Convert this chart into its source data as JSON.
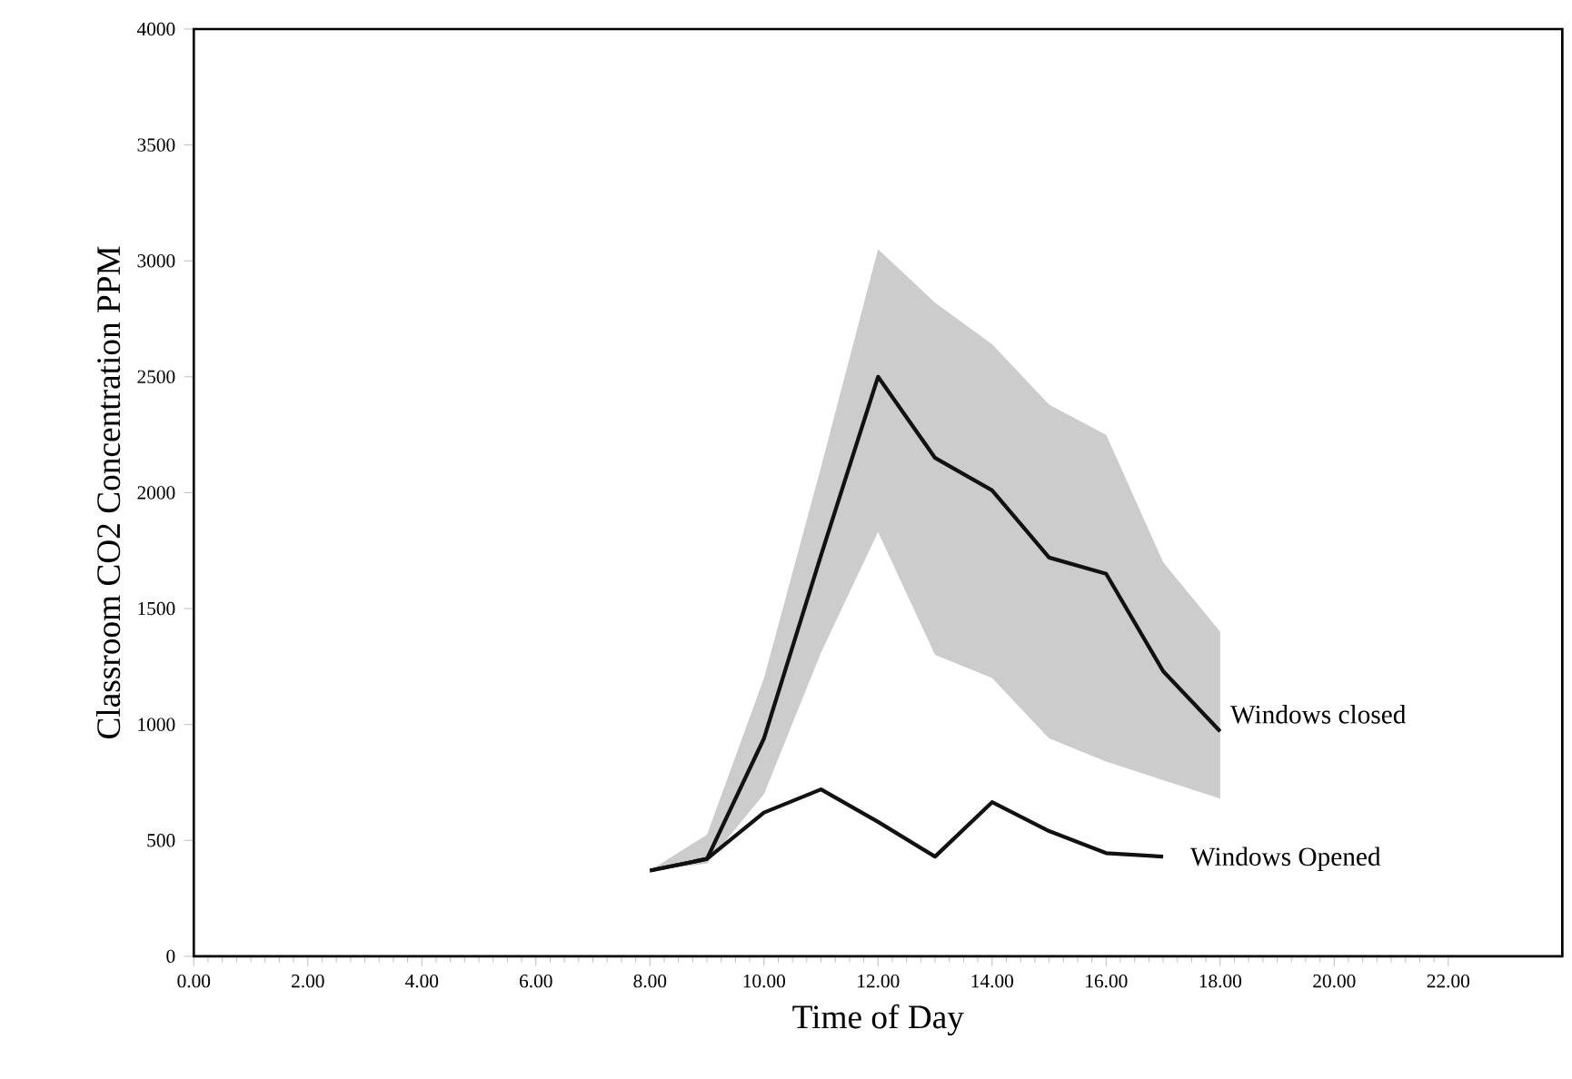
{
  "chart_data": {
    "type": "line",
    "xlabel": "Time of Day",
    "ylabel": "Classroom CO2 Concentration  PPM",
    "xlim": [
      0,
      24
    ],
    "ylim": [
      0,
      4000
    ],
    "xticks": [
      {
        "value": 0,
        "label": "0.00"
      },
      {
        "value": 2,
        "label": "2.00"
      },
      {
        "value": 4,
        "label": "4.00"
      },
      {
        "value": 6,
        "label": "6.00"
      },
      {
        "value": 8,
        "label": "8.00"
      },
      {
        "value": 10,
        "label": "10.00"
      },
      {
        "value": 12,
        "label": "12.00"
      },
      {
        "value": 14,
        "label": "14.00"
      },
      {
        "value": 16,
        "label": "16.00"
      },
      {
        "value": 18,
        "label": "18.00"
      },
      {
        "value": 20,
        "label": "20.00"
      },
      {
        "value": 22,
        "label": "22.00"
      }
    ],
    "yticks": [
      0,
      500,
      1000,
      1500,
      2000,
      2500,
      3000,
      3500,
      4000
    ],
    "series": [
      {
        "name": "Windows closed",
        "color": "#111111",
        "x": [
          8,
          9,
          10,
          11,
          12,
          13,
          14,
          15,
          16,
          17,
          18
        ],
        "values": [
          370,
          420,
          940,
          1730,
          2500,
          2150,
          2010,
          1720,
          1650,
          1230,
          970
        ],
        "lower": [
          370,
          400,
          700,
          1310,
          1830,
          1300,
          1200,
          940,
          840,
          760,
          680
        ],
        "upper": [
          370,
          525,
          1200,
          2110,
          3050,
          2820,
          2640,
          2380,
          2250,
          1700,
          1400
        ]
      },
      {
        "name": "Windows Opened",
        "color": "#111111",
        "x": [
          8,
          9,
          10,
          11,
          12,
          13,
          14,
          15,
          16,
          17
        ],
        "values": [
          370,
          420,
          620,
          720,
          580,
          430,
          665,
          540,
          445,
          430
        ]
      }
    ]
  }
}
